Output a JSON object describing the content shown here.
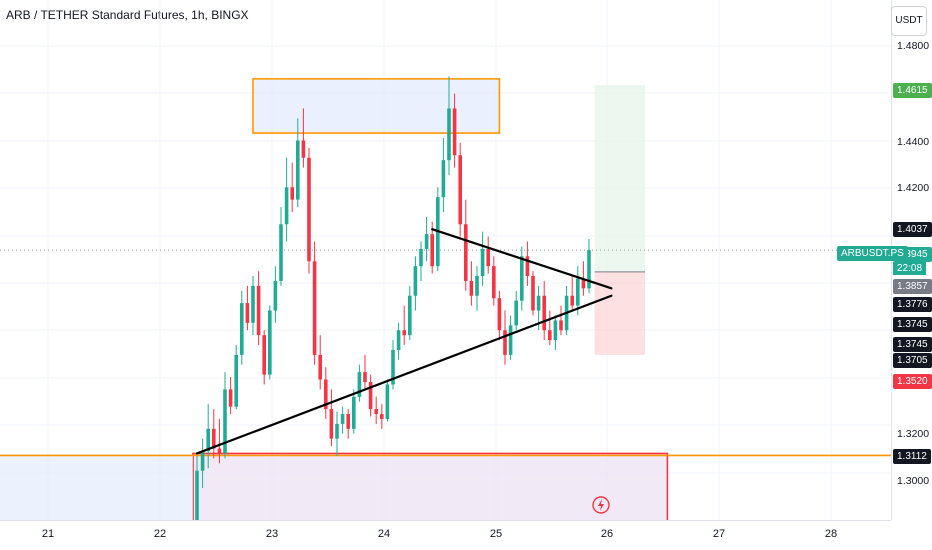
{
  "header": {
    "title": "ARB / TETHER Standard Futures, 1h, BINGX"
  },
  "price_axis": {
    "currency": "USDT",
    "ticks": [
      "1.4800",
      "1.4400",
      "1.4200",
      "1.3200",
      "1.3000"
    ],
    "markers": [
      {
        "label": "1.4615",
        "value": 1.4615,
        "bg": "#4caf50"
      },
      {
        "label": "1.4037",
        "value": 1.4037,
        "bg": "#131722"
      },
      {
        "label": "1.3945",
        "value": 1.3945,
        "bg": "#22ab94"
      },
      {
        "label": "1.3857",
        "value": 1.3857,
        "bg": "#787b86"
      },
      {
        "label": "1.3776",
        "value": 1.3776,
        "bg": "#131722"
      },
      {
        "label": "1.3745",
        "value": 1.3745,
        "bg": "#131722"
      },
      {
        "label": "1.3745",
        "value": 1.3745,
        "bg": "#131722"
      },
      {
        "label": "1.3705",
        "value": 1.3705,
        "bg": "#131722"
      },
      {
        "label": "1.3520",
        "value": 1.352,
        "bg": "#f23645"
      },
      {
        "label": "1.3112",
        "value": 1.3112,
        "bg": "#131722"
      }
    ],
    "symbol_badge": "ARBUSDT.PS",
    "countdown": "22:08"
  },
  "colors": {
    "up": "#22ab94",
    "down": "#f23645",
    "grid": "#f0f3fa",
    "zone_orange": "#ff9800",
    "zone_blue_fill": "#e3ebfc",
    "target_fill": "#e6f4ea",
    "stop_fill": "#fbd5d8",
    "trendline": "#000000"
  },
  "chart_data": {
    "type": "candlestick",
    "x_axis_labels": [
      "21",
      "22",
      "23",
      "24",
      "25",
      "26",
      "27",
      "28"
    ],
    "y_axis_range": [
      1.285,
      1.496
    ],
    "candles_ohlc": [
      [
        1.275,
        1.311,
        1.27,
        1.305
      ],
      [
        1.305,
        1.318,
        1.298,
        1.313
      ],
      [
        1.313,
        1.332,
        1.306,
        1.322
      ],
      [
        1.322,
        1.33,
        1.31,
        1.314
      ],
      [
        1.314,
        1.326,
        1.308,
        1.312
      ],
      [
        1.312,
        1.345,
        1.31,
        1.338
      ],
      [
        1.338,
        1.343,
        1.328,
        1.331
      ],
      [
        1.331,
        1.356,
        1.33,
        1.352
      ],
      [
        1.352,
        1.378,
        1.348,
        1.373
      ],
      [
        1.373,
        1.38,
        1.362,
        1.365
      ],
      [
        1.365,
        1.384,
        1.36,
        1.38
      ],
      [
        1.38,
        1.386,
        1.356,
        1.36
      ],
      [
        1.36,
        1.362,
        1.34,
        1.344
      ],
      [
        1.344,
        1.372,
        1.342,
        1.37
      ],
      [
        1.37,
        1.388,
        1.365,
        1.382
      ],
      [
        1.382,
        1.412,
        1.38,
        1.405
      ],
      [
        1.405,
        1.432,
        1.398,
        1.42
      ],
      [
        1.42,
        1.43,
        1.41,
        1.415
      ],
      [
        1.415,
        1.448,
        1.412,
        1.439
      ],
      [
        1.439,
        1.452,
        1.428,
        1.432
      ],
      [
        1.432,
        1.436,
        1.385,
        1.39
      ],
      [
        1.39,
        1.398,
        1.348,
        1.352
      ],
      [
        1.352,
        1.36,
        1.338,
        1.342
      ],
      [
        1.342,
        1.347,
        1.326,
        1.33
      ],
      [
        1.33,
        1.338,
        1.315,
        1.318
      ],
      [
        1.318,
        1.329,
        1.311,
        1.324
      ],
      [
        1.324,
        1.331,
        1.32,
        1.328
      ],
      [
        1.328,
        1.33,
        1.318,
        1.322
      ],
      [
        1.322,
        1.338,
        1.32,
        1.335
      ],
      [
        1.335,
        1.348,
        1.333,
        1.345
      ],
      [
        1.345,
        1.352,
        1.338,
        1.341
      ],
      [
        1.341,
        1.344,
        1.327,
        1.33
      ],
      [
        1.33,
        1.335,
        1.324,
        1.328
      ],
      [
        1.328,
        1.332,
        1.322,
        1.326
      ],
      [
        1.326,
        1.342,
        1.325,
        1.34
      ],
      [
        1.34,
        1.358,
        1.338,
        1.354
      ],
      [
        1.354,
        1.365,
        1.35,
        1.362
      ],
      [
        1.362,
        1.372,
        1.356,
        1.36
      ],
      [
        1.36,
        1.38,
        1.358,
        1.376
      ],
      [
        1.376,
        1.392,
        1.37,
        1.388
      ],
      [
        1.388,
        1.398,
        1.382,
        1.395
      ],
      [
        1.395,
        1.408,
        1.39,
        1.401
      ],
      [
        1.401,
        1.406,
        1.385,
        1.388
      ],
      [
        1.388,
        1.42,
        1.386,
        1.416
      ],
      [
        1.416,
        1.44,
        1.41,
        1.431
      ],
      [
        1.431,
        1.465,
        1.425,
        1.452
      ],
      [
        1.452,
        1.458,
        1.428,
        1.433
      ],
      [
        1.433,
        1.438,
        1.4,
        1.405
      ],
      [
        1.405,
        1.415,
        1.378,
        1.382
      ],
      [
        1.382,
        1.39,
        1.372,
        1.376
      ],
      [
        1.376,
        1.388,
        1.37,
        1.384
      ],
      [
        1.384,
        1.402,
        1.38,
        1.395
      ],
      [
        1.395,
        1.4,
        1.385,
        1.388
      ],
      [
        1.388,
        1.392,
        1.372,
        1.375
      ],
      [
        1.375,
        1.378,
        1.358,
        1.362
      ],
      [
        1.362,
        1.37,
        1.348,
        1.352
      ],
      [
        1.352,
        1.368,
        1.35,
        1.364
      ],
      [
        1.364,
        1.378,
        1.362,
        1.374
      ],
      [
        1.374,
        1.396,
        1.37,
        1.392
      ],
      [
        1.392,
        1.398,
        1.38,
        1.384
      ],
      [
        1.384,
        1.386,
        1.368,
        1.37
      ],
      [
        1.37,
        1.38,
        1.362,
        1.376
      ],
      [
        1.376,
        1.382,
        1.358,
        1.362
      ],
      [
        1.362,
        1.37,
        1.356,
        1.358
      ],
      [
        1.358,
        1.368,
        1.354,
        1.366
      ],
      [
        1.366,
        1.372,
        1.36,
        1.362
      ],
      [
        1.362,
        1.38,
        1.36,
        1.376
      ],
      [
        1.376,
        1.384,
        1.37,
        1.372
      ],
      [
        1.372,
        1.388,
        1.368,
        1.383
      ],
      [
        1.383,
        1.39,
        1.376,
        1.379
      ],
      [
        1.379,
        1.399,
        1.377,
        1.3945
      ]
    ],
    "trendlines": [
      {
        "name": "support",
        "from": [
          0,
          1.312
        ],
        "to": [
          74,
          1.376
        ]
      },
      {
        "name": "resistance",
        "from": [
          42,
          1.403
        ],
        "to": [
          74,
          1.379
        ]
      }
    ],
    "zones": [
      {
        "name": "supply-zone",
        "from_idx": 10,
        "to_idx": 54,
        "top": 1.464,
        "bottom": 1.442
      },
      {
        "name": "demand-zone",
        "from_idx": 0,
        "to_idx": 84,
        "top": 1.312,
        "bottom": 1.27
      },
      {
        "name": "target-zone",
        "from_idx": 71,
        "to_idx": 80,
        "top": 1.4615,
        "bottom": 1.3857
      },
      {
        "name": "stop-zone",
        "from_idx": 71,
        "to_idx": 80,
        "top": 1.3857,
        "bottom": 1.352
      }
    ],
    "horizontal_lines": [
      {
        "name": "support-level",
        "value": 1.3112
      },
      {
        "name": "last-price-line",
        "value": 1.3945
      }
    ]
  }
}
